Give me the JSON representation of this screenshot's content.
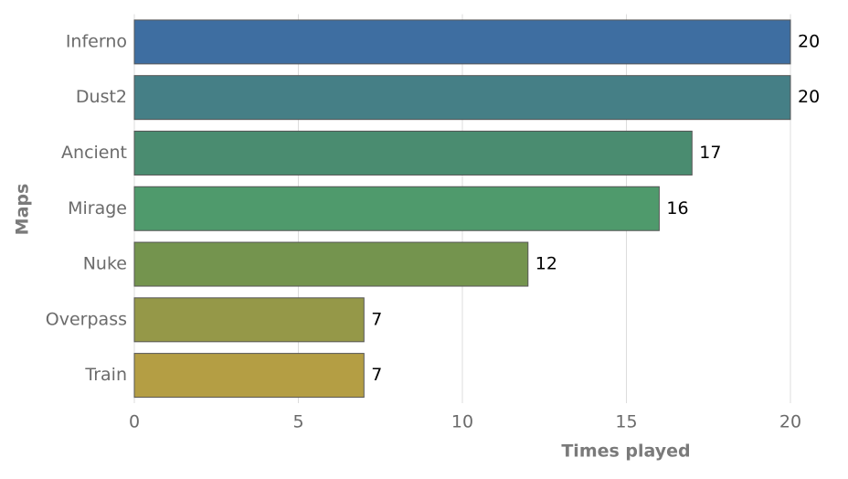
{
  "chart_data": {
    "type": "barh",
    "categories": [
      "Inferno",
      "Dust2",
      "Ancient",
      "Mirage",
      "Nuke",
      "Overpass",
      "Train"
    ],
    "values": [
      20,
      20,
      17,
      16,
      12,
      7,
      7
    ],
    "colors": [
      "#3e6ea1",
      "#457f86",
      "#4a8c70",
      "#4f9a6c",
      "#74944e",
      "#959848",
      "#b49e44"
    ],
    "xlabel": "Times played",
    "ylabel": "Maps",
    "xlim": [
      0,
      20
    ],
    "xticks": [
      0,
      5,
      10,
      15,
      20
    ],
    "grid": true
  }
}
